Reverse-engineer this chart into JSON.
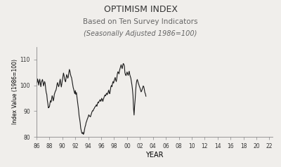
{
  "title": "OPTIMISM INDEX",
  "subtitle1": "Based on Ten Survey Indicators",
  "subtitle2": "(Seasonally Adjusted 1986=100)",
  "xlabel": "YEAR",
  "ylabel": "Index Value (1986=100)",
  "xlim": [
    1986,
    2022.5
  ],
  "ylim": [
    80,
    115
  ],
  "yticks": [
    80,
    90,
    100,
    110
  ],
  "xtick_labels": [
    "86",
    "88",
    "90",
    "92",
    "94",
    "96",
    "98",
    "00",
    "02",
    "04",
    "06",
    "08",
    "10",
    "12",
    "14",
    "16",
    "18",
    "20",
    "22"
  ],
  "xtick_vals": [
    1986,
    1988,
    1990,
    1992,
    1994,
    1996,
    1998,
    2000,
    2002,
    2004,
    2006,
    2008,
    2010,
    2012,
    2014,
    2016,
    2018,
    2020,
    2022
  ],
  "line_color": "#1a1a1a",
  "line_width": 0.8,
  "bg_color": "#f0eeeb",
  "title_color": "#333333",
  "subtitle_color": "#666666",
  "values": [
    100.9,
    101.2,
    102.5,
    101.4,
    100.1,
    101.7,
    102.4,
    100.8,
    99.5,
    101.2,
    101.7,
    102.3,
    101.4,
    99.8,
    100.6,
    101.5,
    100.8,
    98.7,
    97.2,
    96.5,
    94.3,
    93.0,
    91.3,
    91.5,
    91.8,
    93.2,
    94.1,
    93.5,
    94.8,
    96.0,
    95.3,
    94.0,
    94.8,
    96.5,
    97.2,
    97.8,
    98.1,
    99.0,
    100.4,
    101.1,
    100.2,
    99.5,
    100.1,
    101.5,
    102.4,
    100.6,
    99.4,
    100.8,
    102.1,
    103.5,
    104.8,
    103.9,
    102.5,
    101.8,
    101.4,
    103.2,
    104.2,
    103.5,
    102.8,
    103.4,
    105.0,
    106.2,
    105.5,
    104.3,
    103.5,
    103.0,
    101.8,
    100.5,
    99.2,
    98.5,
    97.5,
    96.8,
    98.0,
    96.5,
    97.2,
    95.5,
    93.8,
    92.0,
    90.5,
    88.2,
    87.0,
    85.5,
    83.4,
    82.5,
    81.5,
    81.3,
    81.8,
    81.0,
    81.5,
    82.8,
    83.9,
    84.5,
    85.6,
    86.1,
    86.8,
    87.3,
    87.9,
    88.6,
    88.2,
    88.0,
    87.8,
    88.5,
    89.1,
    89.8,
    90.2,
    90.1,
    90.8,
    91.0,
    91.5,
    91.8,
    92.0,
    92.5,
    91.9,
    92.8,
    93.5,
    93.2,
    93.8,
    94.0,
    94.5,
    93.8,
    94.2,
    95.0,
    94.5,
    93.8,
    94.6,
    95.2,
    95.8,
    96.3,
    95.9,
    96.5,
    97.0,
    96.4,
    96.8,
    97.5,
    98.2,
    97.0,
    96.8,
    98.1,
    99.5,
    100.0,
    99.5,
    100.8,
    101.5,
    100.9,
    101.8,
    102.5,
    103.1,
    102.0,
    101.5,
    102.8,
    104.5,
    105.3,
    105.0,
    104.5,
    105.8,
    106.5,
    107.2,
    108.0,
    107.1,
    106.5,
    107.8,
    108.5,
    108.2,
    107.5,
    105.0,
    104.2,
    103.8,
    104.5,
    105.2,
    104.5,
    103.9,
    104.8,
    105.5,
    104.2,
    103.5,
    102.8,
    101.5,
    100.2,
    98.5,
    96.0,
    91.2,
    88.5,
    92.0,
    94.5,
    98.2,
    100.5,
    101.8,
    102.3,
    101.5,
    100.8,
    100.2,
    99.5,
    99.0,
    98.2,
    97.5,
    97.8,
    98.5,
    99.2,
    99.8,
    99.5,
    98.5,
    97.2,
    96.8,
    95.8
  ],
  "start_year": 1986,
  "start_month": 1,
  "months_per_point": 1
}
